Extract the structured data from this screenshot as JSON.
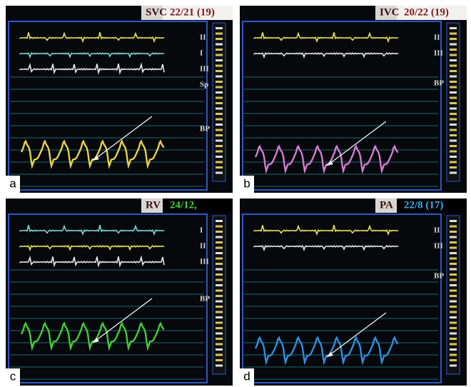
{
  "panels": [
    {
      "letter": "a",
      "site": "SVC",
      "pressure": "22/21 (19)",
      "leads": [
        "II",
        "I",
        "III",
        "Sp",
        "BP"
      ]
    },
    {
      "letter": "b",
      "site": "IVC",
      "pressure": "20/22 (19)",
      "leads": [
        "II",
        "III",
        "BP"
      ]
    },
    {
      "letter": "c",
      "site": "RV",
      "pressure": "24/12,",
      "leads": [
        "I",
        "II",
        "III",
        "BP"
      ]
    },
    {
      "letter": "d",
      "site": "PA",
      "pressure": "22/8 (17)",
      "leads": [
        "II",
        "III",
        "BP"
      ]
    }
  ]
}
